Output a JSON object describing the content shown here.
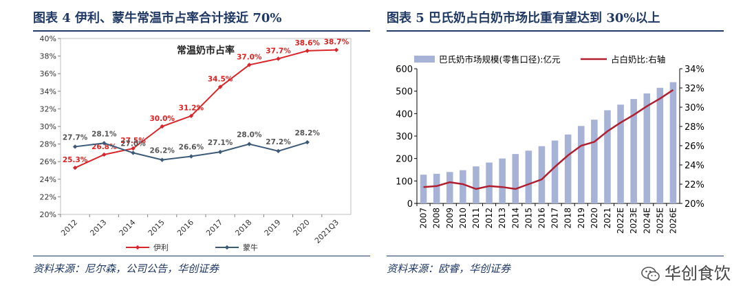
{
  "left": {
    "caption": "图表 4   伊利、蒙牛常温市占率合计接近 70%",
    "source": "资料来源：尼尔森，公司公告，华创证券"
  },
  "right": {
    "caption": "图表 5   巴氏奶占白奶市场比重有望达到 30%以上",
    "source": "资料来源：欧睿，华创证券"
  },
  "watermark": {
    "text": "华创食饮",
    "icon": "wechat-icon"
  },
  "chart_data": [
    {
      "type": "line",
      "title": "常温奶市占率",
      "categories": [
        "2012",
        "2013",
        "2014",
        "2015",
        "2016",
        "2017",
        "2018",
        "2019",
        "2020",
        "2021Q3"
      ],
      "yticks": [
        "20%",
        "22%",
        "24%",
        "26%",
        "28%",
        "30%",
        "32%",
        "34%",
        "36%",
        "38%",
        "40%"
      ],
      "ylim": [
        20,
        40
      ],
      "grid": false,
      "legend_position": "bottom",
      "series": [
        {
          "name": "伊利",
          "color": "#d9252a",
          "marker": "diamond",
          "values": [
            25.3,
            26.8,
            27.5,
            30.0,
            31.2,
            34.5,
            37.0,
            37.7,
            38.6,
            38.7
          ],
          "labels": [
            "25.3%",
            "26.8%",
            "27.5%",
            "30.0%",
            "31.2%",
            "34.5%",
            "37.0%",
            "37.7%",
            "38.6%",
            "38.7%"
          ]
        },
        {
          "name": "蒙牛",
          "color": "#3c5a78",
          "marker": "diamond",
          "values": [
            27.7,
            28.1,
            27.0,
            26.2,
            26.6,
            27.1,
            28.0,
            27.2,
            28.2,
            null
          ],
          "labels": [
            "27.7%",
            "28.1%",
            "27.0%",
            "26.2%",
            "26.6%",
            "27.1%",
            "28.0%",
            "27.2%",
            "28.2%",
            ""
          ]
        }
      ]
    },
    {
      "type": "bar",
      "categories": [
        "2007",
        "2008",
        "2009",
        "2010",
        "2011",
        "2012",
        "2013",
        "2014",
        "2015",
        "2016",
        "2017",
        "2018",
        "2019",
        "2020",
        "2021",
        "2022E",
        "2023E",
        "2024E",
        "2025E",
        "2026E"
      ],
      "yticks_left": [
        "0",
        "100",
        "200",
        "300",
        "400",
        "500",
        "600"
      ],
      "ylim_left": [
        0,
        600
      ],
      "yticks_right": [
        "20%",
        "22%",
        "24%",
        "26%",
        "28%",
        "30%",
        "32%",
        "34%"
      ],
      "ylim_right": [
        20,
        34
      ],
      "legend_position": "top",
      "series": [
        {
          "name": "巴氏奶市场规模(零售口径):亿元",
          "type": "bar",
          "axis": "left",
          "color": "#a7b3d6",
          "values": [
            128,
            132,
            140,
            148,
            165,
            182,
            200,
            220,
            235,
            255,
            280,
            307,
            345,
            373,
            415,
            440,
            465,
            490,
            515,
            540
          ]
        },
        {
          "name": "占白奶比:右轴",
          "type": "line",
          "axis": "right",
          "color": "#b01e2f",
          "values": [
            21.7,
            21.8,
            22.2,
            22.0,
            21.5,
            21.8,
            21.7,
            21.5,
            22.0,
            22.5,
            23.8,
            25.0,
            26.0,
            26.4,
            27.5,
            28.4,
            29.2,
            30.1,
            30.9,
            31.8
          ]
        }
      ]
    }
  ]
}
